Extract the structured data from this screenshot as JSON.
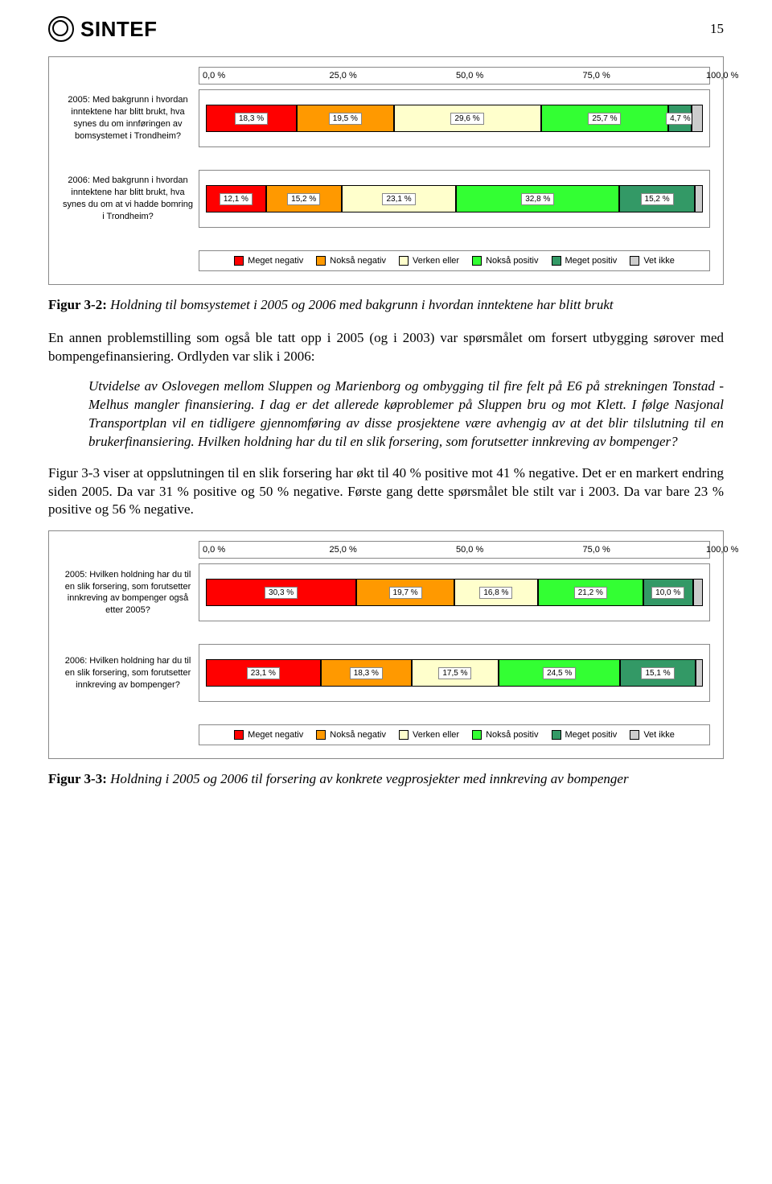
{
  "page_number": "15",
  "logo_text": "SINTEF",
  "colors": {
    "meget_negativ": "#ff0000",
    "nokså_negativ": "#ff9900",
    "verken_eller": "#ffffcc",
    "nokså_positiv": "#33ff33",
    "meget_positiv": "#339966",
    "vet_ikke": "#cccccc",
    "chart_border": "#888888",
    "label_box_bg": "#ffffff"
  },
  "legend_labels": {
    "meget_negativ": "Meget negativ",
    "nokså_negativ": "Nokså negativ",
    "verken_eller": "Verken eller",
    "nokså_positiv": "Nokså positiv",
    "meget_positiv": "Meget positiv",
    "vet_ikke": "Vet ikke"
  },
  "chart1": {
    "type": "stacked-bar-horizontal",
    "axis_ticks": [
      "0,0 %",
      "25,0 %",
      "50,0 %",
      "75,0 %",
      "100,0 %"
    ],
    "rows": [
      {
        "label": "2005: Med bakgrunn i hvordan inntektene har blitt brukt, hva synes du om innføringen av bomsystemet i Trondheim?",
        "segments": [
          {
            "key": "meget_negativ",
            "value": 18.3,
            "label": "18,3 %"
          },
          {
            "key": "nokså_negativ",
            "value": 19.5,
            "label": "19,5 %"
          },
          {
            "key": "verken_eller",
            "value": 29.6,
            "label": "29,6 %"
          },
          {
            "key": "nokså_positiv",
            "value": 25.7,
            "label": "25,7 %"
          },
          {
            "key": "meget_positiv",
            "value": 4.7,
            "label": "4,7 %"
          },
          {
            "key": "vet_ikke",
            "value": 2.2,
            "label": ""
          }
        ]
      },
      {
        "label": "2006: Med bakgrunn i hvordan inntektene har blitt brukt, hva synes du om at vi hadde bomring i Trondheim?",
        "segments": [
          {
            "key": "meget_negativ",
            "value": 12.1,
            "label": "12,1 %"
          },
          {
            "key": "nokså_negativ",
            "value": 15.2,
            "label": "15,2 %"
          },
          {
            "key": "verken_eller",
            "value": 23.1,
            "label": "23,1 %"
          },
          {
            "key": "nokså_positiv",
            "value": 32.8,
            "label": "32,8 %"
          },
          {
            "key": "meget_positiv",
            "value": 15.2,
            "label": "15,2 %"
          },
          {
            "key": "vet_ikke",
            "value": 1.6,
            "label": ""
          }
        ]
      }
    ]
  },
  "caption1_bold": "Figur 3-2:",
  "caption1_italic": "Holdning til bomsystemet i 2005 og 2006 med bakgrunn i hvordan inntektene har blitt brukt",
  "para1": "En annen problemstilling som også ble tatt opp i 2005 (og i 2003) var spørsmålet om forsert utbygging sørover med bompengefinansiering. Ordlyden var slik i 2006:",
  "quote": "Utvidelse av Oslovegen mellom Sluppen og Marienborg og ombygging til fire felt på E6 på strekningen Tonstad - Melhus mangler finansiering. I dag er det allerede køproblemer på Sluppen bru og mot Klett. I følge Nasjonal Transportplan vil en tidligere gjennomføring av disse prosjektene være avhengig av at det blir tilslutning til en brukerfinansiering. Hvilken holdning har du til en slik forsering, som forutsetter innkreving av bompenger?",
  "para2": "Figur 3-3 viser at oppslutningen til en slik forsering har økt til 40 % positive mot 41 % negative. Det er en markert endring siden 2005. Da var 31 % positive og 50 % negative. Første gang dette spørsmålet ble stilt var i 2003. Da var bare 23 % positive og 56 % negative.",
  "chart2": {
    "type": "stacked-bar-horizontal",
    "axis_ticks": [
      "0,0 %",
      "25,0 %",
      "50,0 %",
      "75,0 %",
      "100,0 %"
    ],
    "rows": [
      {
        "label": "2005: Hvilken holdning har du til en slik forsering, som forutsetter innkreving av bompenger også etter 2005?",
        "segments": [
          {
            "key": "meget_negativ",
            "value": 30.3,
            "label": "30,3 %"
          },
          {
            "key": "nokså_negativ",
            "value": 19.7,
            "label": "19,7 %"
          },
          {
            "key": "verken_eller",
            "value": 16.8,
            "label": "16,8 %"
          },
          {
            "key": "nokså_positiv",
            "value": 21.2,
            "label": "21,2 %"
          },
          {
            "key": "meget_positiv",
            "value": 10.0,
            "label": "10,0 %"
          },
          {
            "key": "vet_ikke",
            "value": 2.0,
            "label": ""
          }
        ]
      },
      {
        "label": "2006: Hvilken holdning har du til en slik forsering, som forutsetter innkreving av bompenger?",
        "segments": [
          {
            "key": "meget_negativ",
            "value": 23.1,
            "label": "23,1 %"
          },
          {
            "key": "nokså_negativ",
            "value": 18.3,
            "label": "18,3 %"
          },
          {
            "key": "verken_eller",
            "value": 17.5,
            "label": "17,5 %"
          },
          {
            "key": "nokså_positiv",
            "value": 24.5,
            "label": "24,5 %"
          },
          {
            "key": "meget_positiv",
            "value": 15.1,
            "label": "15,1 %"
          },
          {
            "key": "vet_ikke",
            "value": 1.5,
            "label": ""
          }
        ]
      }
    ]
  },
  "caption2_bold": "Figur 3-3:",
  "caption2_italic": "Holdning i 2005 og 2006 til forsering av konkrete vegprosjekter med innkreving av bompenger"
}
